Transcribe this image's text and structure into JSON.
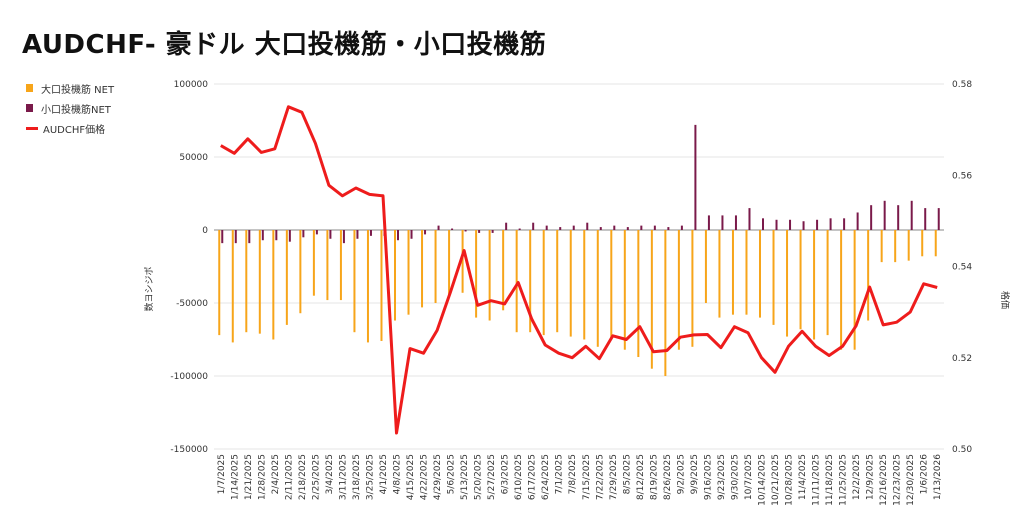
{
  "title": "AUDCHF- 豪ドル 大口投機筋・小口投機筋",
  "legend": [
    {
      "label": "大口投機筋 NET",
      "color": "#f7a51a",
      "kind": "bar"
    },
    {
      "label": "小口投機筋NET",
      "color": "#7a1a4a",
      "kind": "bar"
    },
    {
      "label": "AUDCHF価格",
      "color": "#ee1c1c",
      "kind": "line"
    }
  ],
  "chart_data": {
    "type": "bar+line",
    "title": "AUDCHF- 豪ドル 大口投機筋・小口投機筋",
    "ylabel_left": "数ヨシジポ",
    "ylabel_right": "格価",
    "ylim_left": [
      -150000,
      100000
    ],
    "ylim_right": [
      0.5,
      0.58
    ],
    "yticks_left": [
      "100000",
      "50000",
      "0",
      "-50000",
      "-100000",
      "-150000"
    ],
    "yticks_right": [
      "0.58",
      "0.56",
      "0.54",
      "0.52",
      "0.50"
    ],
    "categories": [
      "1/7/2025",
      "1/14/2025",
      "1/21/2025",
      "1/28/2025",
      "2/4/2025",
      "2/11/2025",
      "2/18/2025",
      "2/25/2025",
      "3/4/2025",
      "3/11/2025",
      "3/18/2025",
      "3/25/2025",
      "4/1/2025",
      "4/8/2025",
      "4/15/2025",
      "4/22/2025",
      "4/29/2025",
      "5/6/2025",
      "5/13/2025",
      "5/20/2025",
      "5/27/2025",
      "6/3/2025",
      "6/10/2025",
      "6/17/2025",
      "6/24/2025",
      "7/1/2025",
      "7/8/2025",
      "7/15/2025",
      "7/22/2025",
      "7/29/2025",
      "8/5/2025",
      "8/12/2025",
      "8/19/2025",
      "8/26/2025",
      "9/2/2025",
      "9/9/2025",
      "9/16/2025",
      "9/23/2025",
      "9/30/2025",
      "10/7/2025",
      "10/14/2025",
      "10/21/2025",
      "10/28/2025",
      "11/4/2025",
      "11/11/2025",
      "11/18/2025",
      "11/25/2025",
      "12/2/2025",
      "12/9/2025",
      "12/16/2025",
      "12/23/2025",
      "12/30/2025",
      "1/6/2026",
      "1/13/2026"
    ],
    "series": [
      {
        "name": "大口投機筋 NET",
        "type": "bar",
        "axis": "left",
        "color": "#f7a51a",
        "values": [
          -72000,
          -77000,
          -70000,
          -71000,
          -75000,
          -65000,
          -57000,
          -45000,
          -48000,
          -48000,
          -70000,
          -77000,
          -76000,
          -62000,
          -58000,
          -53000,
          -50000,
          -45000,
          -43000,
          -60000,
          -62000,
          -55000,
          -70000,
          -70000,
          -72000,
          -70000,
          -73000,
          -75000,
          -80000,
          -75000,
          -82000,
          -87000,
          -95000,
          -100000,
          -82000,
          -80000,
          -50000,
          -60000,
          -58000,
          -58000,
          -60000,
          -65000,
          -73000,
          -68000,
          -75000,
          -72000,
          -82000,
          -82000,
          -62000,
          -22000,
          -22000,
          -21000,
          -18000,
          -18000
        ]
      },
      {
        "name": "小口投機筋NET",
        "type": "bar",
        "axis": "left",
        "color": "#7a1a4a",
        "values": [
          -9000,
          -9000,
          -9000,
          -7000,
          -7000,
          -8000,
          -5000,
          -3000,
          -6000,
          -9000,
          -6000,
          -4000,
          -4000,
          -7000,
          -6000,
          -3000,
          3000,
          1000,
          -1000,
          -2000,
          -2000,
          5000,
          1000,
          5000,
          3000,
          2000,
          3000,
          5000,
          2000,
          3000,
          2000,
          3000,
          3000,
          2000,
          3000,
          72000,
          10000,
          10000,
          10000,
          15000,
          8000,
          7000,
          7000,
          6000,
          7000,
          8000,
          8000,
          12000,
          17000,
          20000,
          17000,
          20000,
          15000,
          15000
        ]
      },
      {
        "name": "AUDCHF価格",
        "type": "line",
        "axis": "right",
        "color": "#ee1c1c",
        "values": [
          0.5665,
          0.5648,
          0.568,
          0.565,
          0.5658,
          0.575,
          0.5738,
          0.567,
          0.5578,
          0.5555,
          0.5572,
          0.5558,
          0.5555,
          0.5035,
          0.522,
          0.521,
          0.526,
          0.5345,
          0.5435,
          0.5315,
          0.5325,
          0.5318,
          0.5365,
          0.5285,
          0.5228,
          0.521,
          0.52,
          0.5225,
          0.5198,
          0.5248,
          0.524,
          0.5268,
          0.5213,
          0.5216,
          0.5245,
          0.525,
          0.5251,
          0.5222,
          0.5268,
          0.5255,
          0.52,
          0.5168,
          0.5225,
          0.5258,
          0.5225,
          0.5205,
          0.5225,
          0.527,
          0.5355,
          0.5272,
          0.5278,
          0.53,
          0.5362,
          0.5354
        ]
      }
    ]
  }
}
